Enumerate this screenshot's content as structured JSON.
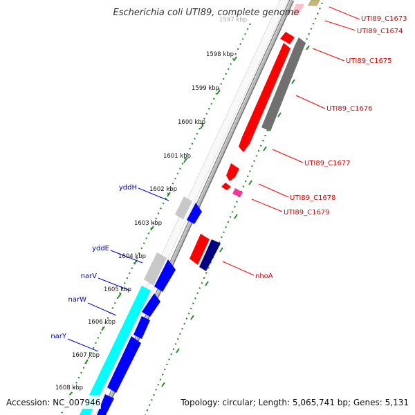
{
  "title": "Escherichia coli UTI89, complete genome",
  "footer": {
    "accession": "Accession: NC_007946",
    "topology": "Topology: circular; Length: 5,065,741 bp; Genes: 5,131"
  },
  "ticks": [
    "1597 kbp",
    "1598 kbp",
    "1599 kbp",
    "1600 kbp",
    "1601 kbp",
    "1602 kbp",
    "1603 kbp",
    "1604 kbp",
    "1605 kbp",
    "1606 kbp",
    "1607 kbp",
    "1608 kbp"
  ],
  "gene_labels_right": [
    "UTI89_C1673",
    "UTI89_C1674",
    "UTI89_C1675",
    "UTI89_C1676",
    "UTI89_C1677",
    "UTI89_C1678",
    "UTI89_C1679",
    "nhoA"
  ],
  "gene_labels_left": [
    "yddH",
    "yddE",
    "narV",
    "narW",
    "narY"
  ],
  "colors": {
    "gene_red": "#ff0000",
    "gene_blue": "#0000ff",
    "gene_navy": "#000080",
    "gene_gray": "#808080",
    "gene_lightgray": "#c0c0c0",
    "gene_pink": "#ff3399",
    "gene_lightpink": "#ffc0cb",
    "gene_olive": "#c8b878",
    "gene_cyan": "#00ffff",
    "backbone": "#888888",
    "dots": "#228b22",
    "label_red": "#d40000",
    "label_blue": "#0000b0"
  }
}
